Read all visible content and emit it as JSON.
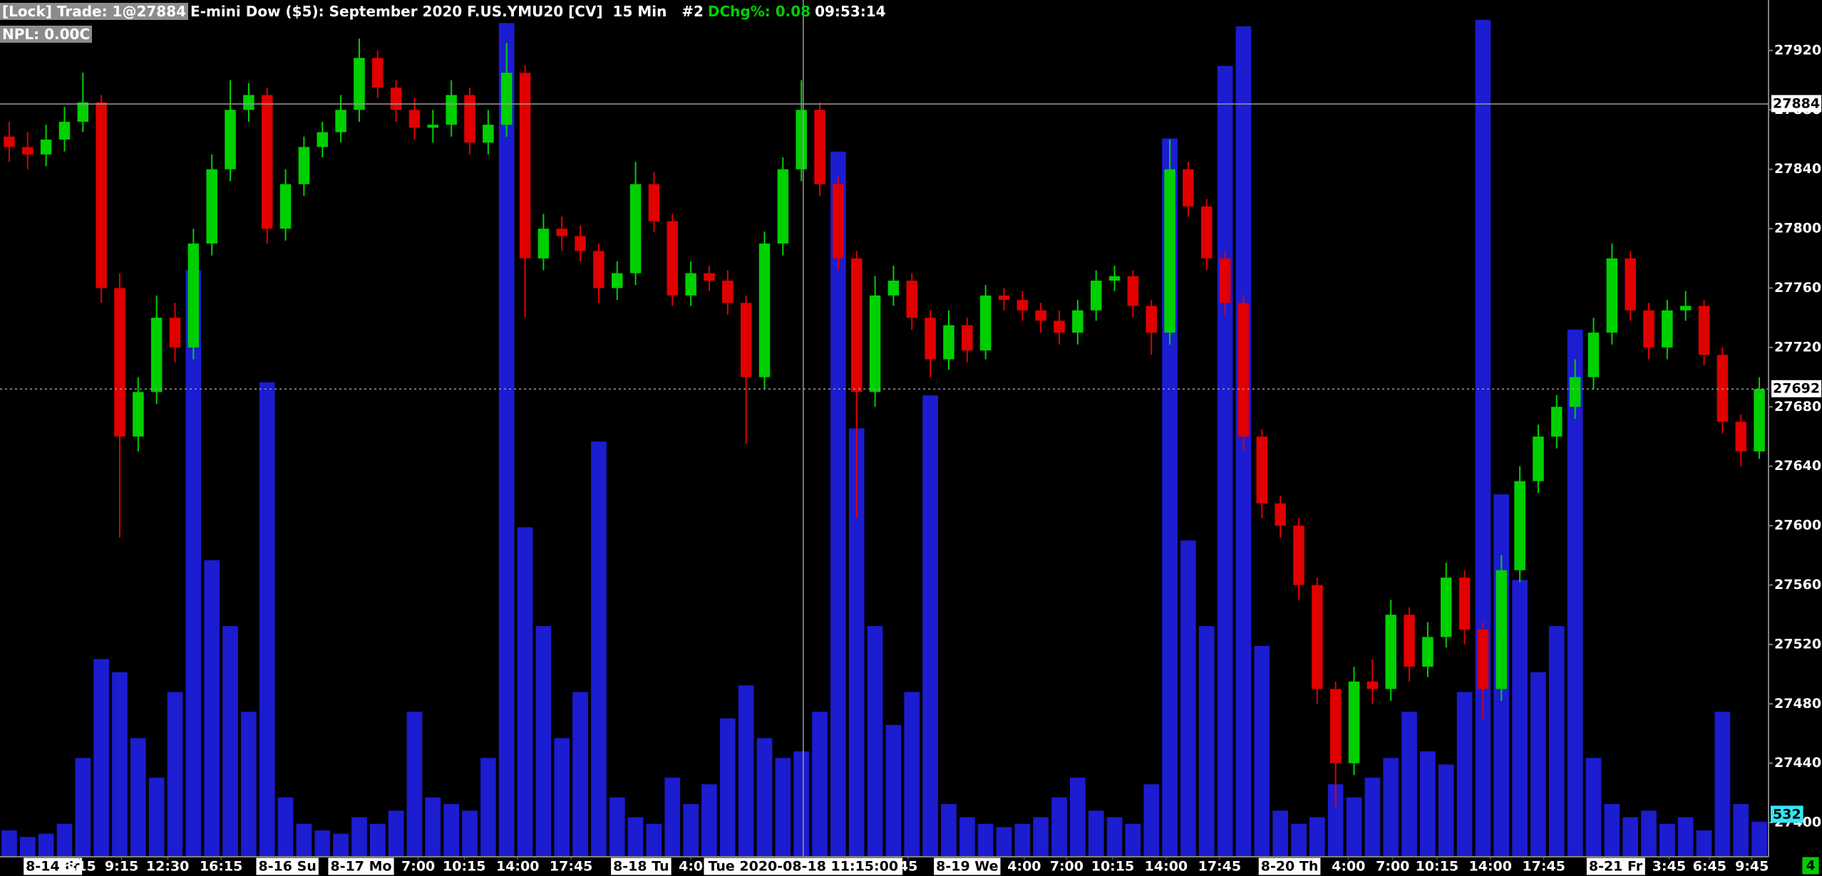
{
  "chart_data": {
    "type": "candlestick",
    "lock_label": "[Lock] Trade: 1@27884",
    "title": "E-mini Dow ($5): September 2020 F.US.YMU20 [CV]  15 Min   #2",
    "change_label": "DChg%: 0.08",
    "time": "09:53:14",
    "npl": "NPL: 0.00C",
    "corner_badge": "4",
    "up_color": "#00d000",
    "down_color": "#e00000",
    "volume_color": "#1c1cd0",
    "grid": false,
    "open": [
      27862,
      27855,
      27850,
      27860,
      27872,
      27885,
      27760,
      27660,
      27690,
      27740,
      27720,
      27790,
      27840,
      27880,
      27890,
      27800,
      27830,
      27855,
      27865,
      27880,
      27915,
      27895,
      27880,
      27868,
      27870,
      27890,
      27858,
      27870,
      27905,
      27780,
      27800,
      27795,
      27785,
      27760,
      27770,
      27830,
      27805,
      27755,
      27770,
      27765,
      27750,
      27700,
      27790,
      27840,
      27880,
      27830,
      27780,
      27690,
      27755,
      27765,
      27740,
      27712,
      27735,
      27718,
      27755,
      27752,
      27745,
      27738,
      27730,
      27745,
      27765,
      27768,
      27748,
      27730,
      27840,
      27815,
      27780,
      27750,
      27660,
      27615,
      27600,
      27560,
      27490,
      27440,
      27495,
      27490,
      27540,
      27505,
      27525,
      27565,
      27530,
      27490,
      27570,
      27630,
      27660,
      27680,
      27700,
      27730,
      27780,
      27745,
      27720,
      27745,
      27748,
      27715,
      27670,
      27650
    ],
    "high": [
      27872,
      27865,
      27870,
      27882,
      27905,
      27890,
      27770,
      27700,
      27755,
      27750,
      27800,
      27850,
      27900,
      27898,
      27895,
      27840,
      27862,
      27872,
      27890,
      27928,
      27920,
      27900,
      27888,
      27880,
      27900,
      27895,
      27880,
      27925,
      27910,
      27810,
      27808,
      27802,
      27790,
      27778,
      27845,
      27838,
      27810,
      27778,
      27775,
      27772,
      27755,
      27798,
      27848,
      27900,
      27885,
      27835,
      27785,
      27768,
      27775,
      27770,
      27745,
      27745,
      27740,
      27762,
      27760,
      27758,
      27750,
      27745,
      27752,
      27772,
      27775,
      27772,
      27752,
      27860,
      27845,
      27820,
      27785,
      27755,
      27665,
      27620,
      27605,
      27565,
      27495,
      27505,
      27510,
      27550,
      27545,
      27535,
      27575,
      27570,
      27535,
      27580,
      27640,
      27668,
      27688,
      27712,
      27740,
      27790,
      27785,
      27750,
      27752,
      27758,
      27752,
      27720,
      27675,
      27700
    ],
    "low": [
      27845,
      27840,
      27842,
      27852,
      27865,
      27750,
      27592,
      27650,
      27682,
      27710,
      27712,
      27782,
      27832,
      27872,
      27790,
      27792,
      27822,
      27848,
      27858,
      27872,
      27888,
      27872,
      27860,
      27858,
      27862,
      27850,
      27850,
      27862,
      27740,
      27772,
      27785,
      27778,
      27750,
      27752,
      27762,
      27798,
      27748,
      27748,
      27758,
      27742,
      27655,
      27692,
      27782,
      27832,
      27822,
      27772,
      27605,
      27680,
      27748,
      27732,
      27700,
      27705,
      27710,
      27712,
      27745,
      27738,
      27730,
      27722,
      27722,
      27738,
      27758,
      27740,
      27715,
      27722,
      27808,
      27772,
      27742,
      27650,
      27605,
      27592,
      27550,
      27480,
      27410,
      27432,
      27480,
      27482,
      27495,
      27498,
      27518,
      27520,
      27470,
      27482,
      27562,
      27622,
      27652,
      27672,
      27692,
      27722,
      27738,
      27712,
      27712,
      27738,
      27708,
      27662,
      27640,
      27645
    ],
    "close": [
      27855,
      27850,
      27860,
      27872,
      27885,
      27760,
      27660,
      27690,
      27740,
      27720,
      27790,
      27840,
      27880,
      27890,
      27800,
      27830,
      27855,
      27865,
      27880,
      27915,
      27895,
      27880,
      27868,
      27870,
      27890,
      27858,
      27870,
      27905,
      27780,
      27800,
      27795,
      27785,
      27760,
      27770,
      27830,
      27805,
      27755,
      27770,
      27765,
      27750,
      27700,
      27790,
      27840,
      27880,
      27830,
      27780,
      27690,
      27755,
      27765,
      27740,
      27712,
      27735,
      27718,
      27755,
      27752,
      27745,
      27738,
      27730,
      27745,
      27765,
      27768,
      27748,
      27730,
      27840,
      27815,
      27780,
      27750,
      27660,
      27615,
      27600,
      27560,
      27490,
      27440,
      27495,
      27490,
      27540,
      27505,
      27525,
      27565,
      27530,
      27490,
      27570,
      27630,
      27660,
      27680,
      27700,
      27730,
      27780,
      27745,
      27720,
      27745,
      27748,
      27715,
      27670,
      27650,
      27692
    ],
    "volume": [
      400,
      300,
      350,
      500,
      1500,
      3000,
      2800,
      1800,
      1200,
      2500,
      8900,
      4500,
      3500,
      2200,
      7200,
      900,
      500,
      400,
      350,
      600,
      500,
      700,
      2200,
      900,
      800,
      700,
      1500,
      12650,
      5000,
      3500,
      1800,
      2500,
      6300,
      900,
      600,
      500,
      1200,
      800,
      1100,
      2100,
      2600,
      1800,
      1500,
      1600,
      2200,
      10700,
      6500,
      3500,
      2000,
      2500,
      7000,
      800,
      600,
      500,
      450,
      500,
      600,
      900,
      1200,
      700,
      600,
      500,
      1100,
      10900,
      4800,
      3500,
      12000,
      12600,
      3200,
      700,
      500,
      600,
      1100,
      900,
      1200,
      1500,
      2200,
      1600,
      1400,
      2500,
      12700,
      5500,
      4200,
      2800,
      3500,
      8000,
      1500,
      800,
      600,
      700,
      500,
      600,
      400,
      2200,
      800,
      532
    ],
    "volume_lim": [
      0,
      13000
    ],
    "xlim": [
      0,
      96
    ],
    "xticks": [
      {
        "value": 1.4,
        "label": "8-14 Fr"
      },
      {
        "value": 4.3,
        "label": "6:15"
      },
      {
        "value": 6.6,
        "label": "9:15"
      },
      {
        "value": 9.1,
        "label": "12:30"
      },
      {
        "value": 12.0,
        "label": "16:15"
      },
      {
        "value": 15.6,
        "label": "8-16 Su"
      },
      {
        "value": 19.6,
        "label": "8-17 Mo"
      },
      {
        "value": 22.7,
        "label": "7:00"
      },
      {
        "value": 25.2,
        "label": "10:15"
      },
      {
        "value": 28.1,
        "label": "14:00"
      },
      {
        "value": 31.0,
        "label": "17:45"
      },
      {
        "value": 34.8,
        "label": "8-18 Tu"
      },
      {
        "value": 37.5,
        "label": "4:0"
      },
      {
        "value": 49.3,
        "label": "45"
      },
      {
        "value": 52.5,
        "label": "8-19 We"
      },
      {
        "value": 55.6,
        "label": "4:00"
      },
      {
        "value": 57.9,
        "label": "7:00"
      },
      {
        "value": 60.4,
        "label": "10:15"
      },
      {
        "value": 63.3,
        "label": "14:00"
      },
      {
        "value": 66.2,
        "label": "17:45"
      },
      {
        "value": 70.0,
        "label": "8-20 Th"
      },
      {
        "value": 73.2,
        "label": "4:00"
      },
      {
        "value": 75.6,
        "label": "7:00"
      },
      {
        "value": 78.0,
        "label": "10:15"
      },
      {
        "value": 80.9,
        "label": "14:00"
      },
      {
        "value": 83.8,
        "label": "17:45"
      },
      {
        "value": 87.7,
        "label": "8-21 Fr"
      },
      {
        "value": 90.6,
        "label": "3:45"
      },
      {
        "value": 92.8,
        "label": "6:45"
      },
      {
        "value": 95.1,
        "label": "9:45"
      }
    ],
    "crosshair": {
      "value": 43.6,
      "label": "Tue 2020-08-18  11:15:00"
    },
    "ylim": [
      27377,
      27954
    ],
    "yticks": [
      27400,
      27440,
      27480,
      27520,
      27560,
      27600,
      27640,
      27680,
      27720,
      27760,
      27800,
      27840,
      27880,
      27920
    ],
    "price_lines": [
      {
        "value": 27884,
        "style": "solid"
      },
      {
        "value": 27692,
        "style": "dotted"
      }
    ]
  }
}
